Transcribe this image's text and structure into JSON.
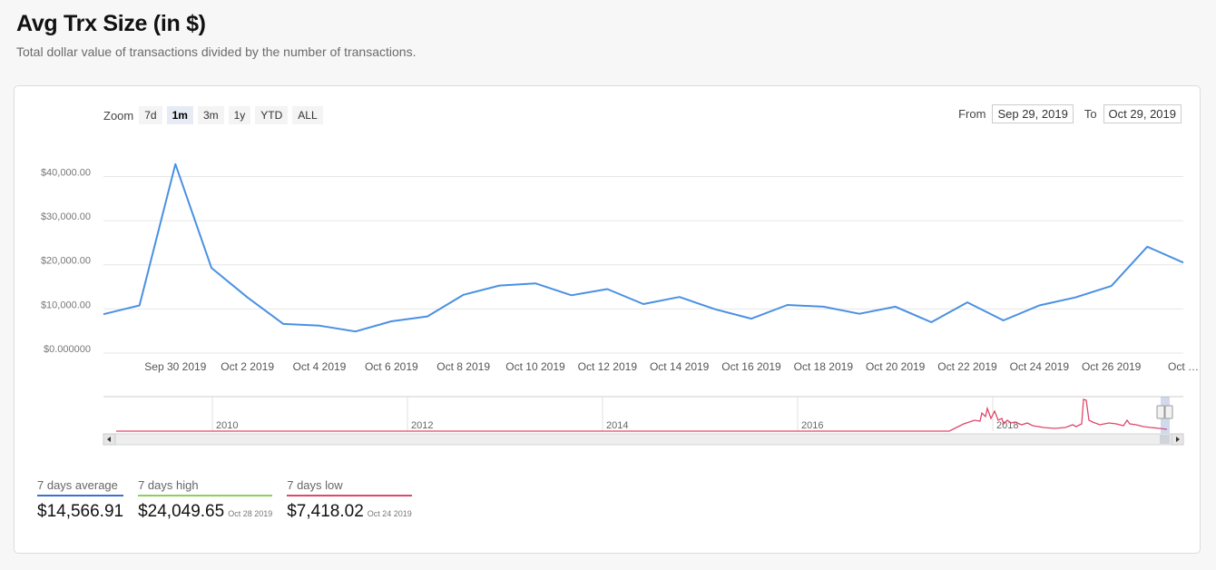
{
  "page": {
    "title": "Avg Trx Size (in $)",
    "subtitle": "Total dollar value of transactions divided by the number of transactions."
  },
  "zoom": {
    "label": "Zoom",
    "buttons": [
      "7d",
      "1m",
      "3m",
      "1y",
      "YTD",
      "ALL"
    ],
    "active": "1m"
  },
  "range": {
    "from_label": "From",
    "from_value": "Sep 29, 2019",
    "to_label": "To",
    "to_value": "Oct 29, 2019"
  },
  "chart_data": {
    "type": "line",
    "title": "",
    "xlabel": "",
    "ylabel": "",
    "ylim": [
      0,
      44000
    ],
    "y_ticks": [
      0,
      10000,
      20000,
      30000,
      40000
    ],
    "y_tick_labels": [
      "$0.000000",
      "$10,000.00",
      "$20,000.00",
      "$30,000.00",
      "$40,000.00"
    ],
    "x_tick_labels": [
      "Sep 30 2019",
      "Oct 2 2019",
      "Oct 4 2019",
      "Oct 6 2019",
      "Oct 8 2019",
      "Oct 10 2019",
      "Oct 12 2019",
      "Oct 14 2019",
      "Oct 16 2019",
      "Oct 18 2019",
      "Oct 20 2019",
      "Oct 22 2019",
      "Oct 24 2019",
      "Oct 26 2019",
      "Oct …"
    ],
    "x": [
      "Sep 28 2019",
      "Sep 29 2019",
      "Sep 30 2019",
      "Oct 1 2019",
      "Oct 2 2019",
      "Oct 3 2019",
      "Oct 4 2019",
      "Oct 5 2019",
      "Oct 6 2019",
      "Oct 7 2019",
      "Oct 8 2019",
      "Oct 9 2019",
      "Oct 10 2019",
      "Oct 11 2019",
      "Oct 12 2019",
      "Oct 13 2019",
      "Oct 14 2019",
      "Oct 15 2019",
      "Oct 16 2019",
      "Oct 17 2019",
      "Oct 18 2019",
      "Oct 19 2019",
      "Oct 20 2019",
      "Oct 21 2019",
      "Oct 22 2019",
      "Oct 23 2019",
      "Oct 24 2019",
      "Oct 25 2019",
      "Oct 26 2019",
      "Oct 27 2019",
      "Oct 28 2019"
    ],
    "series": [
      {
        "values": [
          8800,
          10800,
          42800,
          19300,
          12600,
          6600,
          6200,
          4900,
          7200,
          8300,
          13200,
          15300,
          15800,
          13100,
          14500,
          11100,
          12700,
          9900,
          7800,
          10900,
          10500,
          8900,
          10500,
          7000,
          11500,
          7400,
          10800,
          12600,
          15200,
          24100,
          20500
        ],
        "color": "#4a90e2"
      }
    ],
    "grid": true,
    "legend": "none",
    "navigator": {
      "year_labels": [
        "2010",
        "2012",
        "2014",
        "2016",
        "2018"
      ],
      "color": "#e0476a"
    }
  },
  "stats": [
    {
      "label": "7 days average",
      "value": "$14,566.91",
      "date": "",
      "color": "#3b6fd4"
    },
    {
      "label": "7 days high",
      "value": "$24,049.65",
      "date": "Oct 28 2019",
      "color": "#8bd05a"
    },
    {
      "label": "7 days low",
      "value": "$7,418.02",
      "date": "Oct 24 2019",
      "color": "#e0476a"
    }
  ]
}
